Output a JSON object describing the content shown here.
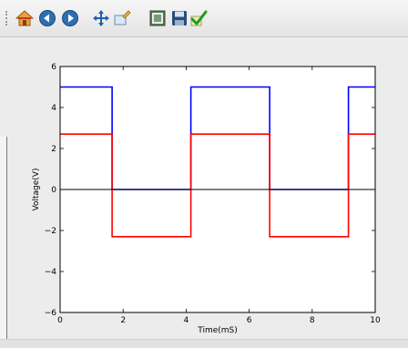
{
  "toolbar": {
    "buttons": [
      {
        "name": "home-icon",
        "label": "Home"
      },
      {
        "name": "back-icon",
        "label": "Back"
      },
      {
        "name": "forward-icon",
        "label": "Forward"
      },
      {
        "name": "pan-icon",
        "label": "Pan"
      },
      {
        "name": "zoom-icon",
        "label": "Zoom"
      },
      {
        "name": "subplots-icon",
        "label": "Configure subplots"
      },
      {
        "name": "save-icon",
        "label": "Save"
      },
      {
        "name": "edit-icon",
        "label": "Edit axes"
      }
    ]
  },
  "chart_data": {
    "type": "line",
    "title": "",
    "xlabel": "Time(mS)",
    "ylabel": "Voltage(V)",
    "xlim": [
      0,
      10
    ],
    "ylim": [
      -6,
      6
    ],
    "xticks": [
      "0",
      "2",
      "4",
      "6",
      "8",
      "10"
    ],
    "yticks": [
      "6",
      "4",
      "2",
      "0",
      "−2",
      "−4",
      "−6"
    ],
    "grid": false,
    "series": [
      {
        "color": "#0000ff",
        "x": [
          0,
          1.65,
          1.65,
          4.15,
          4.15,
          6.65,
          6.65,
          9.15,
          9.15,
          10
        ],
        "y": [
          5,
          5,
          0,
          0,
          5,
          5,
          0,
          0,
          5,
          5
        ]
      },
      {
        "color": "#ff0000",
        "x": [
          0,
          1.65,
          1.65,
          4.15,
          4.15,
          6.65,
          6.65,
          9.15,
          9.15,
          10
        ],
        "y": [
          2.7,
          2.7,
          -2.3,
          -2.3,
          2.7,
          2.7,
          -2.3,
          -2.3,
          2.7,
          2.7
        ]
      },
      {
        "color": "#000000",
        "x": [
          0,
          10
        ],
        "y": [
          0,
          0
        ]
      }
    ]
  }
}
